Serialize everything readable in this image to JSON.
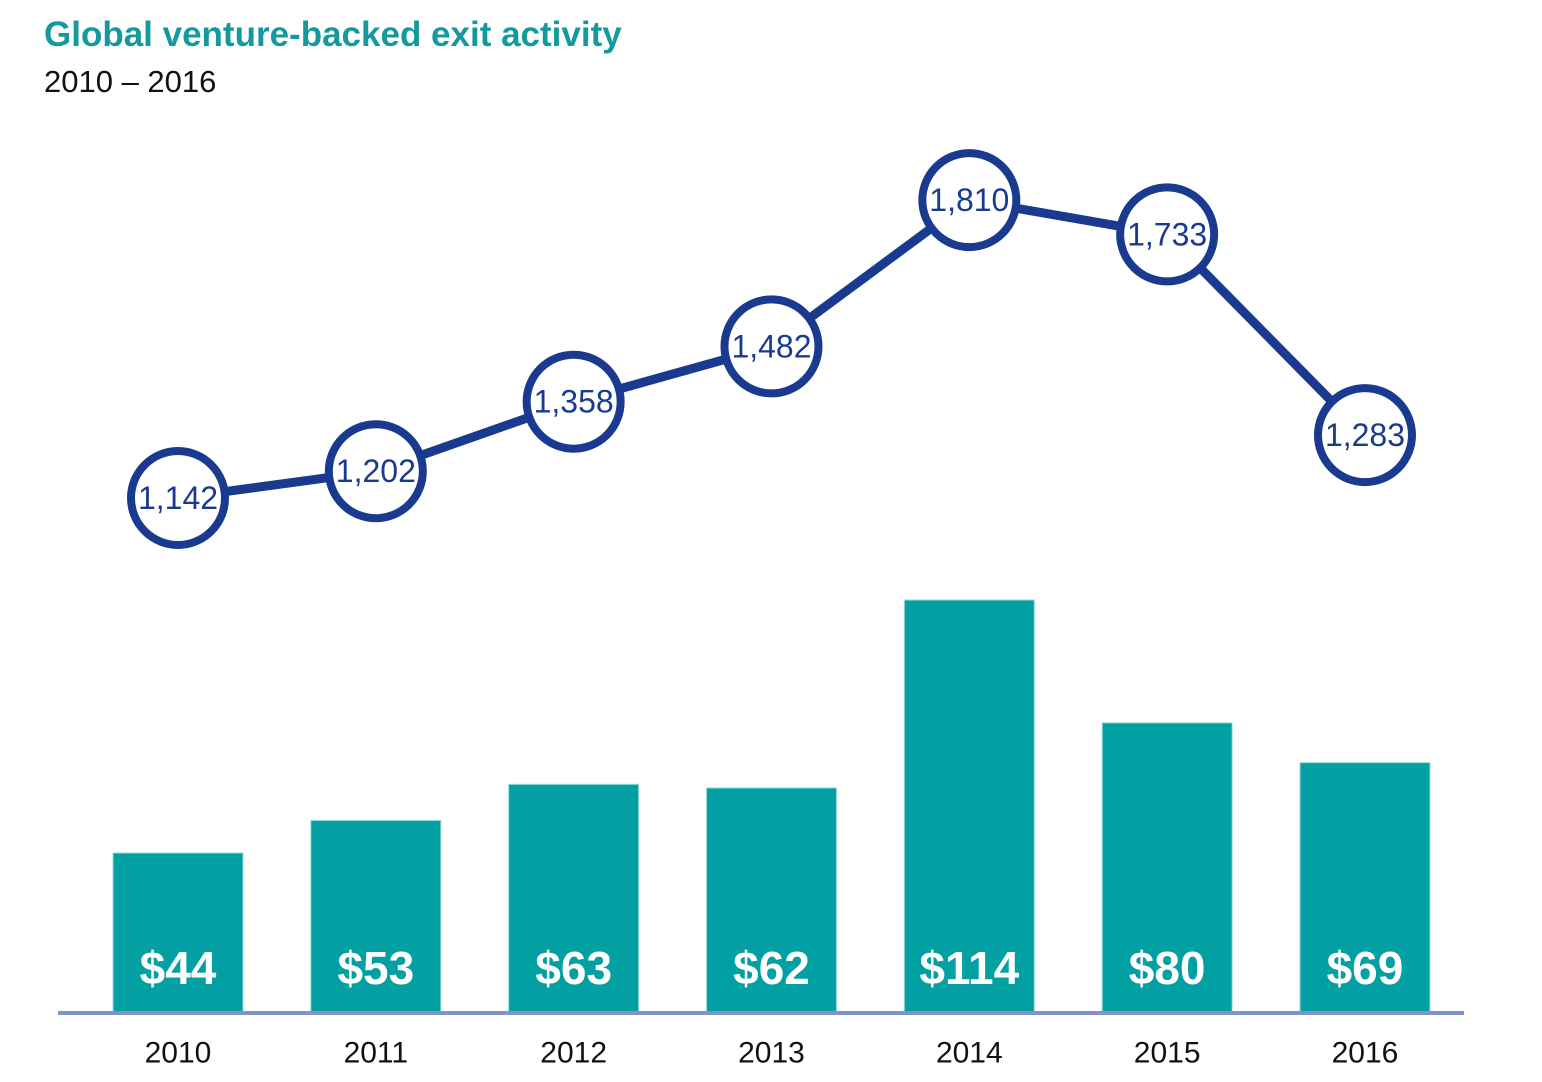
{
  "header": {
    "title": "Global venture-backed exit activity",
    "subtitle": "2010 – 2016"
  },
  "colors": {
    "title_teal": "#149A9D",
    "bar_teal": "#02A0A2",
    "bar_edge": "#9EDCDD",
    "navy": "#1A3A8F",
    "marker_fill": "#FFFFFF",
    "axis_line": "#8094C8",
    "bar_label": "#FFFFFF",
    "year_label": "#111111"
  },
  "chart_data": {
    "type": "combo",
    "title": "Global venture-backed exit activity",
    "subtitle": "2010 – 2016",
    "categories": [
      "2010",
      "2011",
      "2012",
      "2013",
      "2014",
      "2015",
      "2016"
    ],
    "series": [
      {
        "name": "exit-count",
        "type": "line",
        "values": [
          1142,
          1202,
          1358,
          1482,
          1810,
          1733,
          1283
        ],
        "labels": [
          "1,142",
          "1,202",
          "1,358",
          "1,482",
          "1,810",
          "1,733",
          "1,283"
        ]
      },
      {
        "name": "exit-value-usd-billions",
        "type": "bar",
        "values": [
          44,
          53,
          63,
          62,
          114,
          80,
          69
        ],
        "labels": [
          "$44",
          "$53",
          "$63",
          "$62",
          "$114",
          "$80",
          "$69"
        ]
      }
    ],
    "xlabel": "",
    "ylabel": "",
    "legend": "none",
    "grid": false,
    "bar_axis_range": [
      0,
      120
    ],
    "line_axis_range": [
      0,
      2000
    ]
  }
}
